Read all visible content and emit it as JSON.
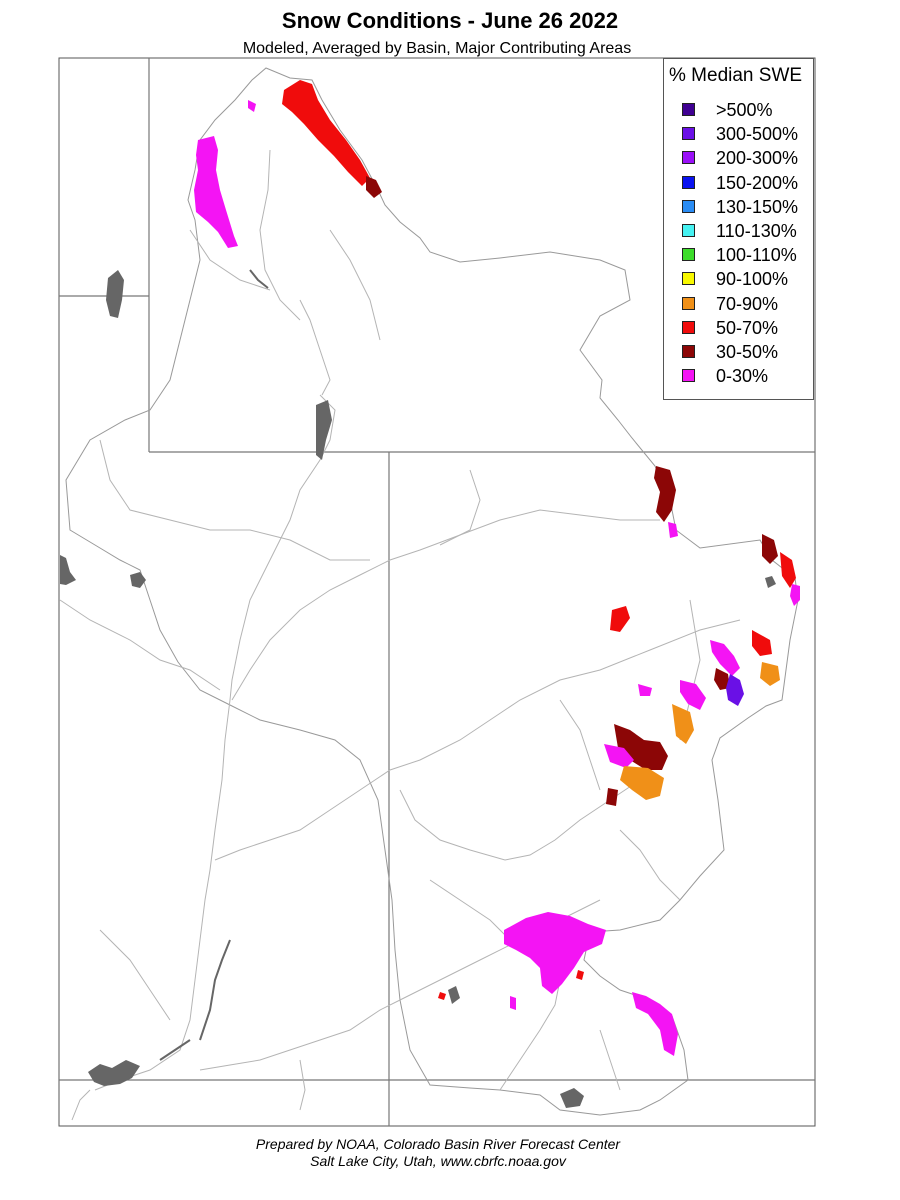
{
  "header": {
    "title": "Snow Conditions - June 26 2022",
    "subtitle": "Modeled, Averaged by Basin, Major Contributing Areas"
  },
  "legend": {
    "title": "% Median SWE",
    "items": [
      {
        "label": ">500%",
        "color": "#3f0092"
      },
      {
        "label": "300-500%",
        "color": "#6a10e6"
      },
      {
        "label": "200-300%",
        "color": "#9a10f8"
      },
      {
        "label": "150-200%",
        "color": "#0a12f0"
      },
      {
        "label": "130-150%",
        "color": "#2a8cf4"
      },
      {
        "label": "110-130%",
        "color": "#46f2f2"
      },
      {
        "label": "100-110%",
        "color": "#3cdc2a"
      },
      {
        "label": "90-100%",
        "color": "#f8f800"
      },
      {
        "label": "70-90%",
        "color": "#f09018"
      },
      {
        "label": "50-70%",
        "color": "#f00c0c"
      },
      {
        "label": "30-50%",
        "color": "#8c0606"
      },
      {
        "label": "0-30%",
        "color": "#f414f4"
      }
    ]
  },
  "map": {
    "state_line_color": "#777777",
    "basin_line_color": "#aaaaaa",
    "river_color": "#b4b4b4",
    "lake_color": "#666666"
  },
  "credits": {
    "line1": "Prepared by NOAA, Colorado Basin River Forecast Center",
    "line2": "Salt Lake City, Utah, www.cbrfc.noaa.gov"
  }
}
